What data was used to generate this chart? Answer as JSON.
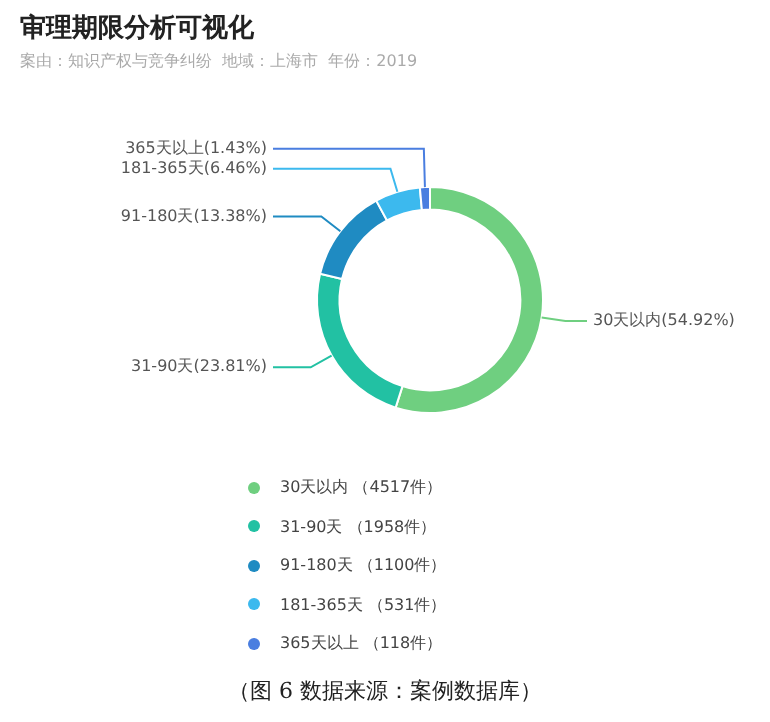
{
  "chart_data": {
    "type": "donut",
    "title": "审理期限分析可视化",
    "subtitle": "案由：知识产权与竞争纠纷  地域：上海市  年份：2019",
    "categories": [
      "30天以内 （4517件）",
      "31-90天 （1958件）",
      "91-180天 （1100件）",
      "181-365天 （531件）",
      "365天以上 （118件）"
    ],
    "values": [
      54.92,
      23.81,
      13.38,
      6.46,
      1.43
    ],
    "colors": [
      "#6fcf80",
      "#22c1a3",
      "#1f8bc2",
      "#3cb9ee",
      "#4a7ee0"
    ],
    "value_labels": [
      "30天以内(54.92%)",
      "31-90天(23.81%)",
      "91-180天(13.38%)",
      "181-365天(6.46%)",
      "365天以上(1.43%)"
    ],
    "legend": "bottom",
    "annotations": [
      "（图 6 数据来源：案例数据库）"
    ]
  }
}
